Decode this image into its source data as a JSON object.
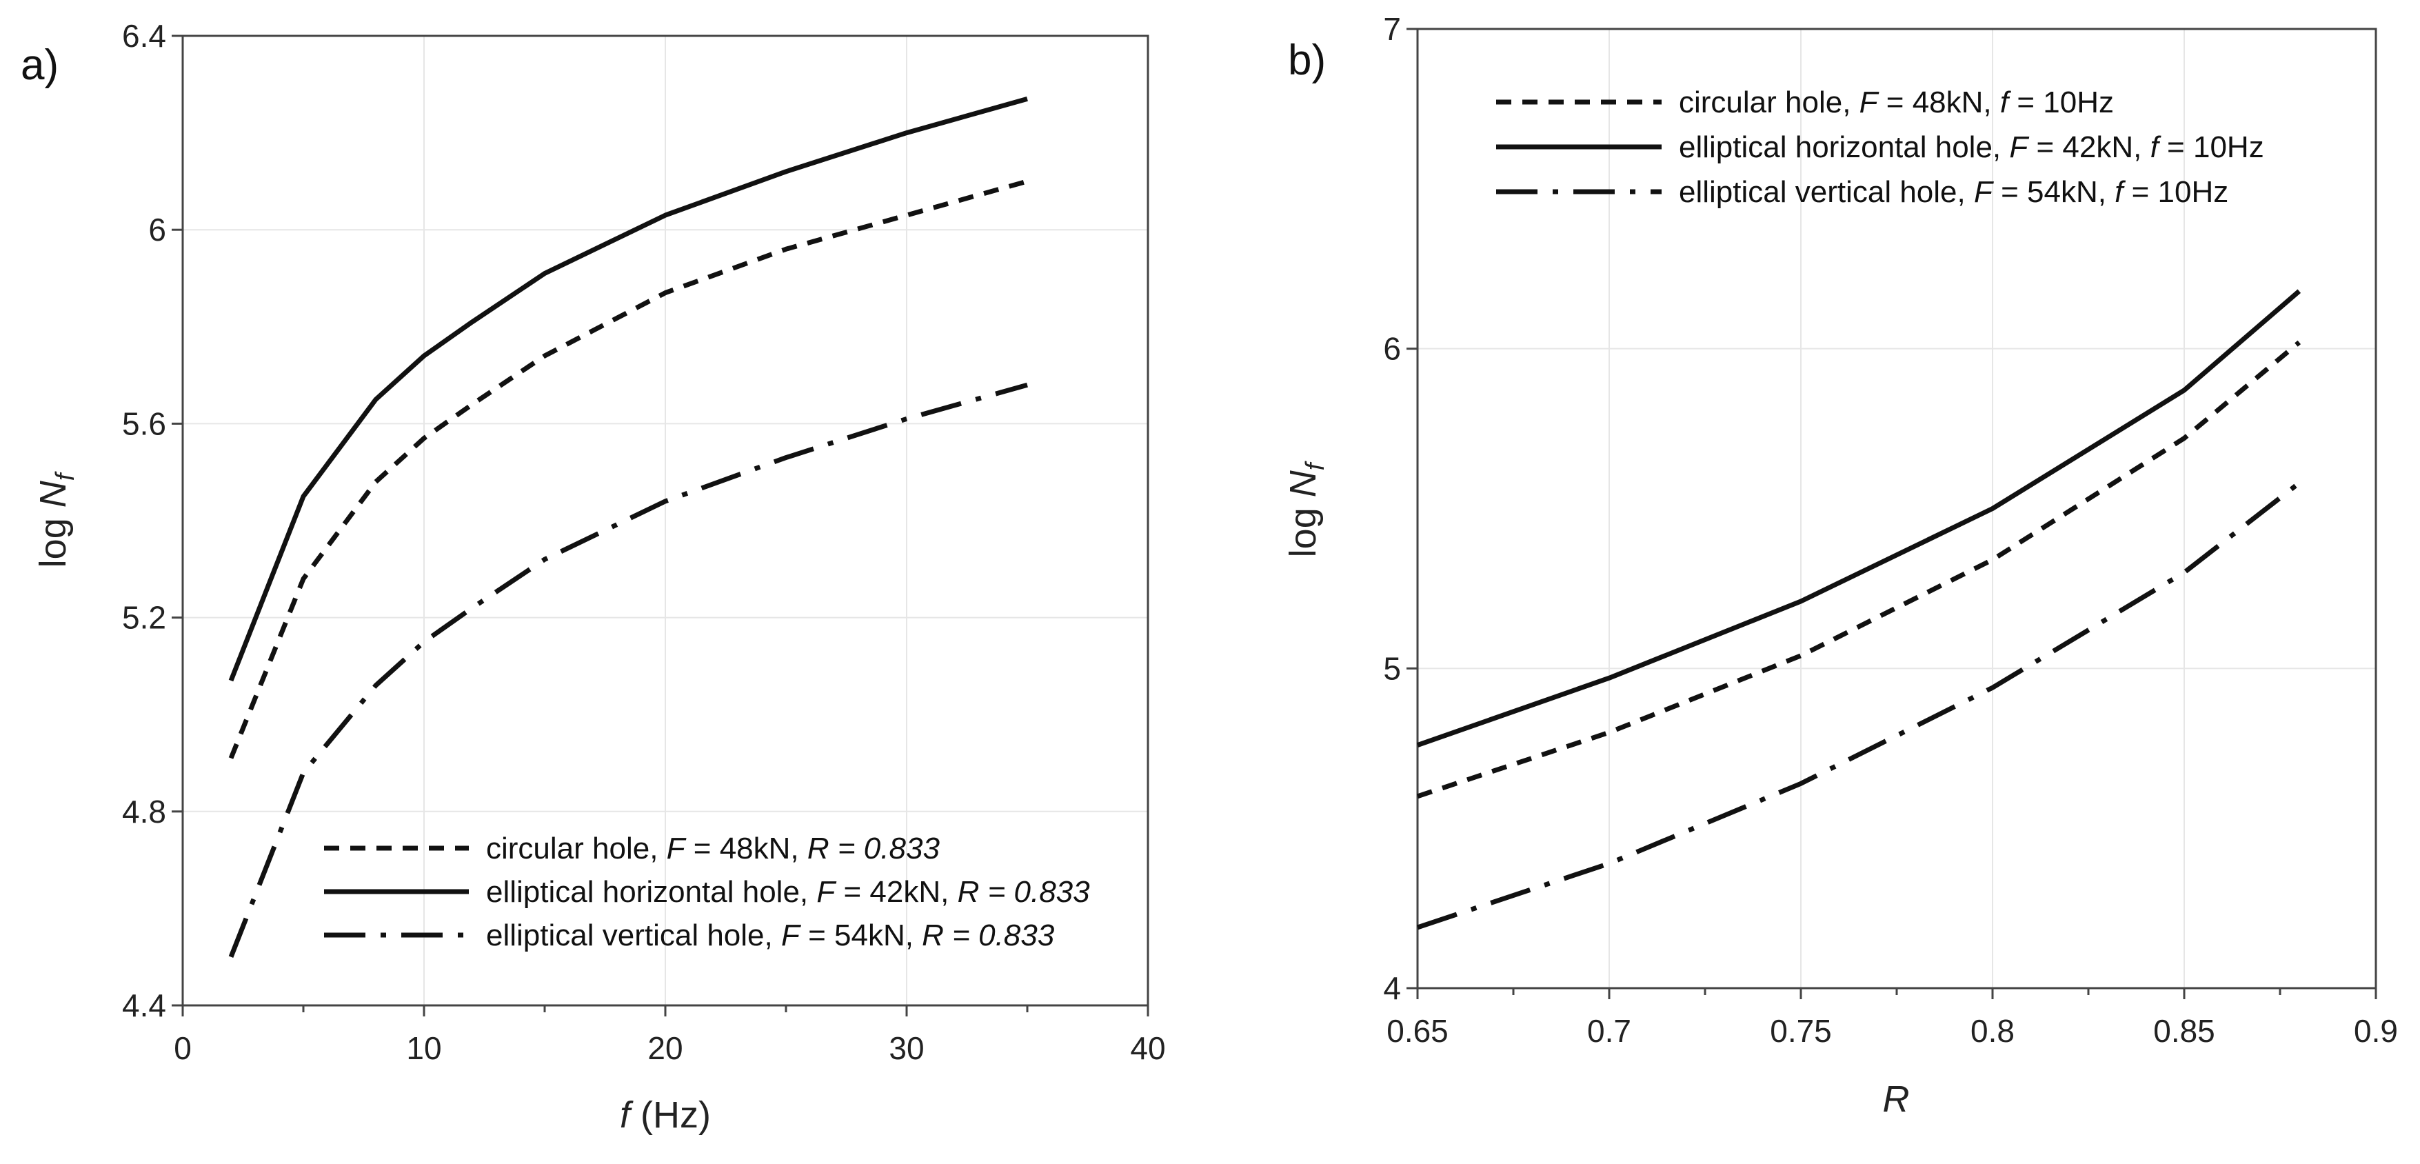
{
  "chart_data": [
    {
      "type": "line",
      "panel_label": "a)",
      "xlabel": {
        "italic": "f",
        "rest": " (Hz)"
      },
      "ylabel": {
        "prefix": "log ",
        "italic": "N",
        "sub": "f"
      },
      "xlim": [
        0,
        40
      ],
      "ylim": [
        4.4,
        6.4
      ],
      "xticks": [
        0,
        10,
        20,
        30,
        40
      ],
      "yticks": [
        4.4,
        4.8,
        5.2,
        5.6,
        6,
        6.4
      ],
      "xtick_labels": [
        "0",
        "10",
        "20",
        "30",
        "40"
      ],
      "ytick_labels": [
        "4.4",
        "4.8",
        "5.2",
        "5.6",
        "6",
        "6.4"
      ],
      "legend_position": "bottom-right",
      "series": [
        {
          "name": "circular hole",
          "style": "dash",
          "legend": {
            "name": "circular hole, ",
            "p1": "F",
            "t1": " = 48kN, ",
            "p2": "R",
            "t2": " = 0.833"
          },
          "x": [
            2,
            5,
            8,
            10,
            12,
            15,
            20,
            25,
            30,
            35
          ],
          "y": [
            4.91,
            5.28,
            5.48,
            5.57,
            5.64,
            5.74,
            5.87,
            5.96,
            6.03,
            6.1
          ]
        },
        {
          "name": "elliptical horizontal hole",
          "style": "solid",
          "legend": {
            "name": "elliptical horizontal hole, ",
            "p1": "F",
            "t1": " = 42kN, ",
            "p2": "R",
            "t2": " = 0.833"
          },
          "x": [
            2,
            5,
            8,
            10,
            12,
            15,
            20,
            25,
            30,
            35
          ],
          "y": [
            5.07,
            5.45,
            5.65,
            5.74,
            5.81,
            5.91,
            6.03,
            6.12,
            6.2,
            6.27
          ]
        },
        {
          "name": "elliptical vertical hole",
          "style": "dashdot",
          "legend": {
            "name": "elliptical vertical hole, ",
            "p1": "F",
            "t1": " = 54kN, ",
            "p2": "R",
            "t2": " = 0.833"
          },
          "x": [
            2,
            5,
            8,
            10,
            12,
            15,
            20,
            25,
            30,
            35
          ],
          "y": [
            4.5,
            4.88,
            5.06,
            5.15,
            5.22,
            5.32,
            5.44,
            5.53,
            5.61,
            5.68
          ]
        }
      ]
    },
    {
      "type": "line",
      "panel_label": "b)",
      "xlabel": {
        "italic": "R",
        "rest": ""
      },
      "ylabel": {
        "prefix": "log ",
        "italic": "N",
        "sub": "f"
      },
      "xlim": [
        0.65,
        0.9
      ],
      "ylim": [
        4,
        7
      ],
      "xticks": [
        0.65,
        0.7,
        0.75,
        0.8,
        0.85,
        0.9
      ],
      "yticks": [
        4,
        5,
        6,
        7
      ],
      "xtick_labels": [
        "0.65",
        "0.7",
        "0.75",
        "0.8",
        "0.85",
        "0.9"
      ],
      "ytick_labels": [
        "4",
        "5",
        "6",
        "7"
      ],
      "legend_position": "top-right",
      "series": [
        {
          "name": "circular hole",
          "style": "dash",
          "legend": {
            "name": "circular hole, ",
            "p1": "F",
            "t1": " = 48kN, ",
            "p2": "f",
            "t2": " = 10Hz"
          },
          "x": [
            0.65,
            0.7,
            0.75,
            0.8,
            0.85,
            0.88
          ],
          "y": [
            4.6,
            4.8,
            5.04,
            5.34,
            5.72,
            6.02
          ]
        },
        {
          "name": "elliptical horizontal hole",
          "style": "solid",
          "legend": {
            "name": "elliptical horizontal hole, ",
            "p1": "F",
            "t1": " = 42kN, ",
            "p2": "f",
            "t2": " = 10Hz"
          },
          "x": [
            0.65,
            0.7,
            0.75,
            0.8,
            0.85,
            0.88
          ],
          "y": [
            4.76,
            4.97,
            5.21,
            5.5,
            5.87,
            6.18
          ]
        },
        {
          "name": "elliptical vertical hole",
          "style": "dashdot",
          "legend": {
            "name": "elliptical vertical hole, ",
            "p1": "F",
            "t1": " = 54kN, ",
            "p2": "f",
            "t2": " = 10Hz"
          },
          "x": [
            0.65,
            0.7,
            0.75,
            0.8,
            0.85,
            0.88
          ],
          "y": [
            4.19,
            4.39,
            4.64,
            4.94,
            5.3,
            5.58
          ]
        }
      ]
    }
  ]
}
